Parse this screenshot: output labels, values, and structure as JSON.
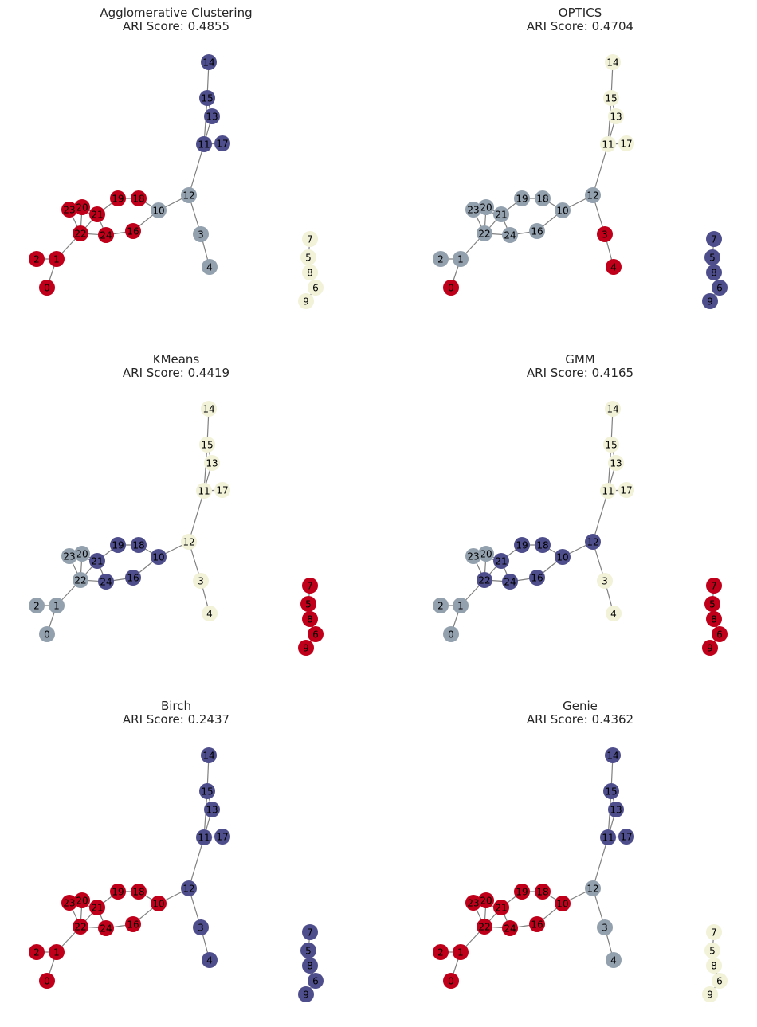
{
  "figure": {
    "panels": [
      {
        "title": "Agglomerative Clustering",
        "score_label": "ARI Score: 0.4855",
        "assignment": {
          "0": "red",
          "1": "red",
          "2": "red",
          "3": "gray",
          "4": "gray",
          "5": "cream",
          "6": "cream",
          "7": "cream",
          "8": "cream",
          "9": "cream",
          "10": "gray",
          "11": "navy",
          "12": "gray",
          "13": "navy",
          "14": "navy",
          "15": "navy",
          "16": "red",
          "17": "navy",
          "18": "red",
          "19": "red",
          "20": "red",
          "21": "red",
          "22": "red",
          "23": "red",
          "24": "red"
        }
      },
      {
        "title": "OPTICS",
        "score_label": "ARI Score: 0.4704",
        "assignment": {
          "0": "red",
          "1": "gray",
          "2": "gray",
          "3": "red",
          "4": "red",
          "5": "navy",
          "6": "navy",
          "7": "navy",
          "8": "navy",
          "9": "navy",
          "10": "gray",
          "11": "cream",
          "12": "gray",
          "13": "cream",
          "14": "cream",
          "15": "cream",
          "16": "gray",
          "17": "cream",
          "18": "gray",
          "19": "gray",
          "20": "gray",
          "21": "gray",
          "22": "gray",
          "23": "gray",
          "24": "gray"
        }
      },
      {
        "title": "KMeans",
        "score_label": "ARI Score: 0.4419",
        "assignment": {
          "0": "gray",
          "1": "gray",
          "2": "gray",
          "3": "cream",
          "4": "cream",
          "5": "red",
          "6": "red",
          "7": "red",
          "8": "red",
          "9": "red",
          "10": "navy",
          "11": "cream",
          "12": "cream",
          "13": "cream",
          "14": "cream",
          "15": "cream",
          "16": "navy",
          "17": "cream",
          "18": "navy",
          "19": "navy",
          "20": "gray",
          "21": "navy",
          "22": "gray",
          "23": "gray",
          "24": "navy"
        }
      },
      {
        "title": "GMM",
        "score_label": "ARI Score: 0.4165",
        "assignment": {
          "0": "gray",
          "1": "gray",
          "2": "gray",
          "3": "cream",
          "4": "cream",
          "5": "red",
          "6": "red",
          "7": "red",
          "8": "red",
          "9": "red",
          "10": "navy",
          "11": "cream",
          "12": "navy",
          "13": "cream",
          "14": "cream",
          "15": "cream",
          "16": "navy",
          "17": "cream",
          "18": "navy",
          "19": "navy",
          "20": "gray",
          "21": "navy",
          "22": "navy",
          "23": "gray",
          "24": "navy"
        }
      },
      {
        "title": "Birch",
        "score_label": "ARI Score: 0.2437",
        "assignment": {
          "0": "red",
          "1": "red",
          "2": "red",
          "3": "navy",
          "4": "navy",
          "5": "navy",
          "6": "navy",
          "7": "navy",
          "8": "navy",
          "9": "navy",
          "10": "red",
          "11": "navy",
          "12": "navy",
          "13": "navy",
          "14": "navy",
          "15": "navy",
          "16": "red",
          "17": "navy",
          "18": "red",
          "19": "red",
          "20": "red",
          "21": "red",
          "22": "red",
          "23": "red",
          "24": "red"
        }
      },
      {
        "title": "Genie",
        "score_label": "ARI Score: 0.4362",
        "assignment": {
          "0": "red",
          "1": "red",
          "2": "red",
          "3": "gray",
          "4": "gray",
          "5": "cream",
          "6": "cream",
          "7": "cream",
          "8": "cream",
          "9": "cream",
          "10": "red",
          "11": "navy",
          "12": "gray",
          "13": "navy",
          "14": "navy",
          "15": "navy",
          "16": "red",
          "17": "navy",
          "18": "red",
          "19": "red",
          "20": "red",
          "21": "red",
          "22": "red",
          "23": "red",
          "24": "red"
        }
      }
    ],
    "palette": {
      "red": "#c0001a",
      "navy": "#4f4e8c",
      "gray": "#93a0ae",
      "cream": "#f1f2d8",
      "edge": "#7f7f7f"
    },
    "nodes": [
      "0",
      "1",
      "2",
      "3",
      "4",
      "5",
      "6",
      "7",
      "8",
      "9",
      "10",
      "11",
      "12",
      "13",
      "14",
      "15",
      "16",
      "17",
      "18",
      "19",
      "20",
      "21",
      "22",
      "23",
      "24"
    ],
    "edges": [
      [
        "0",
        "1"
      ],
      [
        "1",
        "2"
      ],
      [
        "1",
        "22"
      ],
      [
        "22",
        "23"
      ],
      [
        "22",
        "20"
      ],
      [
        "22",
        "21"
      ],
      [
        "22",
        "24"
      ],
      [
        "23",
        "20"
      ],
      [
        "23",
        "21"
      ],
      [
        "20",
        "21"
      ],
      [
        "21",
        "24"
      ],
      [
        "21",
        "19"
      ],
      [
        "19",
        "18"
      ],
      [
        "24",
        "16"
      ],
      [
        "16",
        "10"
      ],
      [
        "18",
        "10"
      ],
      [
        "10",
        "12"
      ],
      [
        "12",
        "11"
      ],
      [
        "12",
        "3"
      ],
      [
        "3",
        "4"
      ],
      [
        "11",
        "13"
      ],
      [
        "11",
        "15"
      ],
      [
        "11",
        "17"
      ],
      [
        "13",
        "15"
      ],
      [
        "15",
        "14"
      ],
      [
        "7",
        "5"
      ],
      [
        "8",
        "6"
      ],
      [
        "6",
        "9"
      ]
    ]
  }
}
